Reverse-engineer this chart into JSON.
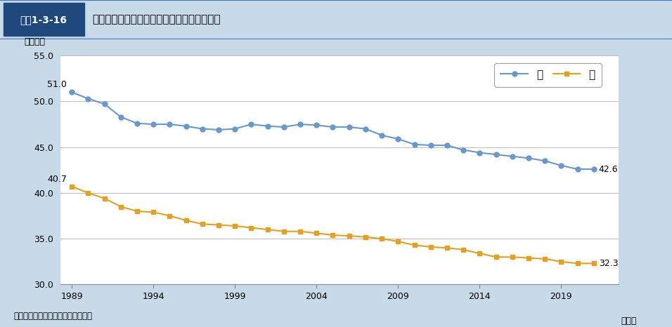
{
  "title_box_label": "図表1-3-16",
  "title_text": "平均週間就業時間の推移（非農林業雇用者）",
  "ylabel": "（時間）",
  "xlabel": "（年）",
  "source": "資料：総務省統計局「労働力調査」",
  "years": [
    1989,
    1990,
    1991,
    1992,
    1993,
    1994,
    1995,
    1996,
    1997,
    1998,
    1999,
    2000,
    2001,
    2002,
    2003,
    2004,
    2005,
    2006,
    2007,
    2008,
    2009,
    2010,
    2011,
    2012,
    2013,
    2014,
    2015,
    2016,
    2017,
    2018,
    2019,
    2020,
    2021
  ],
  "male": [
    51.0,
    50.3,
    49.7,
    48.3,
    47.6,
    47.5,
    47.5,
    47.3,
    47.0,
    46.9,
    47.0,
    47.5,
    47.3,
    47.2,
    47.5,
    47.4,
    47.2,
    47.2,
    47.0,
    46.3,
    45.9,
    45.3,
    45.2,
    45.2,
    44.7,
    44.4,
    44.2,
    44.0,
    43.8,
    43.5,
    43.0,
    42.6,
    42.6
  ],
  "female": [
    40.7,
    40.0,
    39.4,
    38.5,
    38.0,
    37.9,
    37.5,
    37.0,
    36.6,
    36.5,
    36.4,
    36.2,
    36.0,
    35.8,
    35.8,
    35.6,
    35.4,
    35.3,
    35.2,
    35.0,
    34.7,
    34.3,
    34.1,
    34.0,
    33.8,
    33.4,
    33.0,
    33.0,
    32.9,
    32.8,
    32.5,
    32.3,
    32.3
  ],
  "male_color": "#6699CC",
  "female_color": "#E6A020",
  "male_label": "男",
  "female_label": "女",
  "male_start_label": "51.0",
  "female_start_label": "40.7",
  "male_end_label": "42.6",
  "female_end_label": "32.3",
  "ylim_min": 30.0,
  "ylim_max": 55.0,
  "yticks": [
    30.0,
    35.0,
    40.0,
    45.0,
    50.0,
    55.0
  ],
  "xticks": [
    1989,
    1994,
    1999,
    2004,
    2009,
    2014,
    2019
  ],
  "bg_color": "#C8D9E8",
  "plot_bg_color": "#FFFFFF",
  "header_bg_color": "#FFFFFF",
  "header_label_bg": "#1F497D",
  "header_border_color": "#4472C4",
  "grid_color": "#BBBBBB"
}
